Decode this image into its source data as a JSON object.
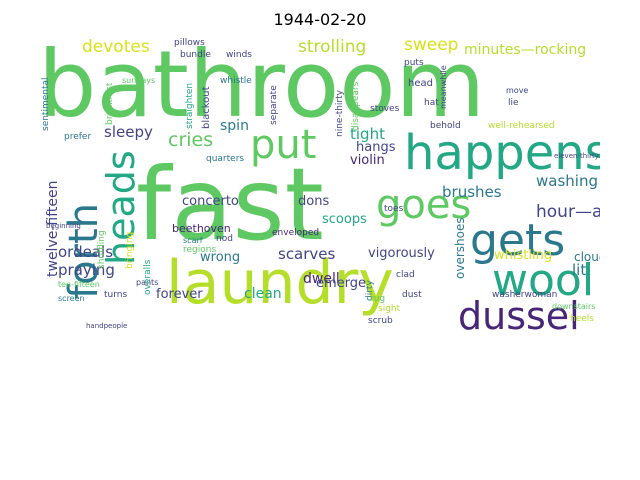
{
  "title": "1944-02-20",
  "palette": {
    "dark_purple": "#482677",
    "indigo": "#414487",
    "blue": "#2a788e",
    "teal": "#22a884",
    "green": "#5ec962",
    "lime": "#b5de2b",
    "yellow": "#d8e219"
  },
  "words": {
    "bathroom": "bathroom",
    "fast": "fast",
    "laundry": "laundry",
    "happens": "happens",
    "put": "put",
    "gets": "gets",
    "goes": "goes",
    "wool": "wool",
    "dussel": "dussel",
    "forth": "forth",
    "heads": "heads",
    "devotes": "devotes",
    "strolling": "strolling",
    "sweep": "sweep",
    "minutes_rocking": "minutes—rocking",
    "cries": "cries",
    "sleepy": "sleepy",
    "spin": "spin",
    "tight": "tight",
    "hangs": "hangs",
    "violin": "violin",
    "washing": "washing",
    "hour_an": "hour—an",
    "cloud": "cloud",
    "lit": "lit",
    "concerto": "concerto",
    "dons": "dons",
    "dwell": "dwell",
    "scoops": "scoops",
    "brushes": "brushes",
    "beethoven": "beethoven",
    "twelve_fifteen": "twelve-fifteen",
    "ordeals": "ordeals",
    "praying": "praying",
    "wrong": "wrong",
    "scarves": "scarves",
    "vigorously": "vigorously",
    "whistling": "whistling",
    "forever": "forever",
    "clean": "clean",
    "emerge": "emerge",
    "overshoes": "overshoes",
    "enveloped": "enveloped",
    "nod": "nod",
    "scarf": "scarf",
    "regions": "regions",
    "pants": "pants",
    "overalls": "overalls",
    "turns": "turns",
    "ten_fifteen": "ten-fifteen",
    "screen": "screen",
    "shuffling": "shuffling",
    "prefer": "prefer",
    "sentimental": "sentimental",
    "breakfast": "breakfast",
    "blackout": "blackout",
    "whistle": "whistle",
    "quarters": "quarters",
    "pillows": "pillows",
    "bundle": "bundle",
    "winds": "winds",
    "sundays": "sundays",
    "straighten": "straighten",
    "separate": "separate",
    "nine_thirty": "nine-thirty",
    "disappears": "disappears",
    "stoves": "stoves",
    "head": "head",
    "puts": "puts",
    "meanwhile": "meanwhile",
    "hat": "hat",
    "dust": "dust",
    "lie": "lie",
    "move": "move",
    "behold": "behold",
    "well_rehearsed": "well-rehearsed",
    "toes": "toes",
    "clad": "clad",
    "dirty": "dirty",
    "rug": "rug",
    "sight": "sight",
    "scrub": "scrub",
    "washerwoman": "washerwoman",
    "downstairs": "downstairs",
    "heels": "heels",
    "bringing": "bringing",
    "eleven_thirty": "eleven-thirty",
    "handpeople": "handpeople",
    "beginning": "beginning"
  }
}
